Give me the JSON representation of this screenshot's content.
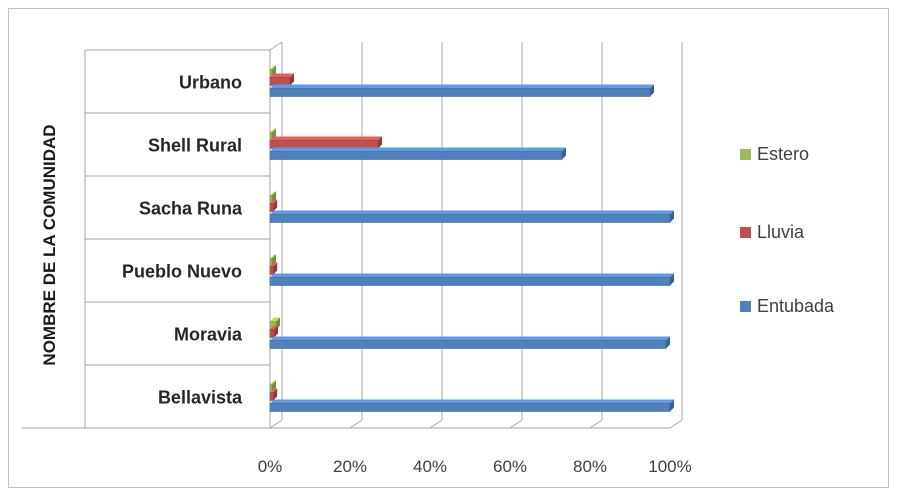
{
  "chart_data": {
    "type": "bar",
    "orientation": "horizontal",
    "title": "",
    "xlabel": "",
    "ylabel": "NOMBRE DE LA COMUNIDAD",
    "categories": [
      "Urbano",
      "Shell Rural",
      "Sacha Runa",
      "Pueblo Nuevo",
      "Moravia",
      "Bellavista"
    ],
    "series": [
      {
        "name": "Estero",
        "color": "#9bbb59",
        "values": [
          0.5,
          0.5,
          0.5,
          0.5,
          1.5,
          0.5
        ]
      },
      {
        "name": "Lluvia",
        "color": "#c0504d",
        "values": [
          5,
          27,
          0.8,
          0.8,
          1,
          0.8
        ]
      },
      {
        "name": "Entubada",
        "color": "#4f81bd",
        "values": [
          95,
          73,
          100,
          100,
          99,
          100
        ]
      }
    ],
    "xlim": [
      0,
      100
    ],
    "xticks": [
      "0%",
      "20%",
      "40%",
      "60%",
      "80%",
      "100%"
    ],
    "grid": true,
    "legend_position": "right"
  }
}
